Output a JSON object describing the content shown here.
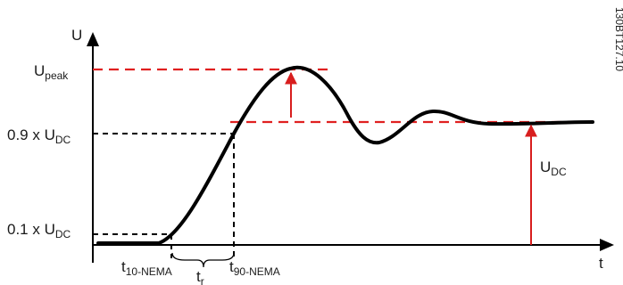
{
  "axes": {
    "y_label": "U",
    "x_label": "t"
  },
  "levels": {
    "peak": {
      "base": "U",
      "sub": "peak"
    },
    "ninety": {
      "base": "0.9 x U",
      "sub": "DC"
    },
    "ten": {
      "base": "0.1 x U",
      "sub": "DC"
    },
    "dc": {
      "base": "U",
      "sub": "DC"
    }
  },
  "times": {
    "t10": {
      "base": "t",
      "sub": "10-NEMA"
    },
    "t90": {
      "base": "t",
      "sub": "90-NEMA"
    },
    "tr": {
      "base": "t",
      "sub": "r"
    }
  },
  "figure_code": "130BT127.10",
  "colors": {
    "curve": "#000000",
    "reference": "#e02020",
    "guide": "#000000",
    "arrow": "#d81e1e"
  }
}
